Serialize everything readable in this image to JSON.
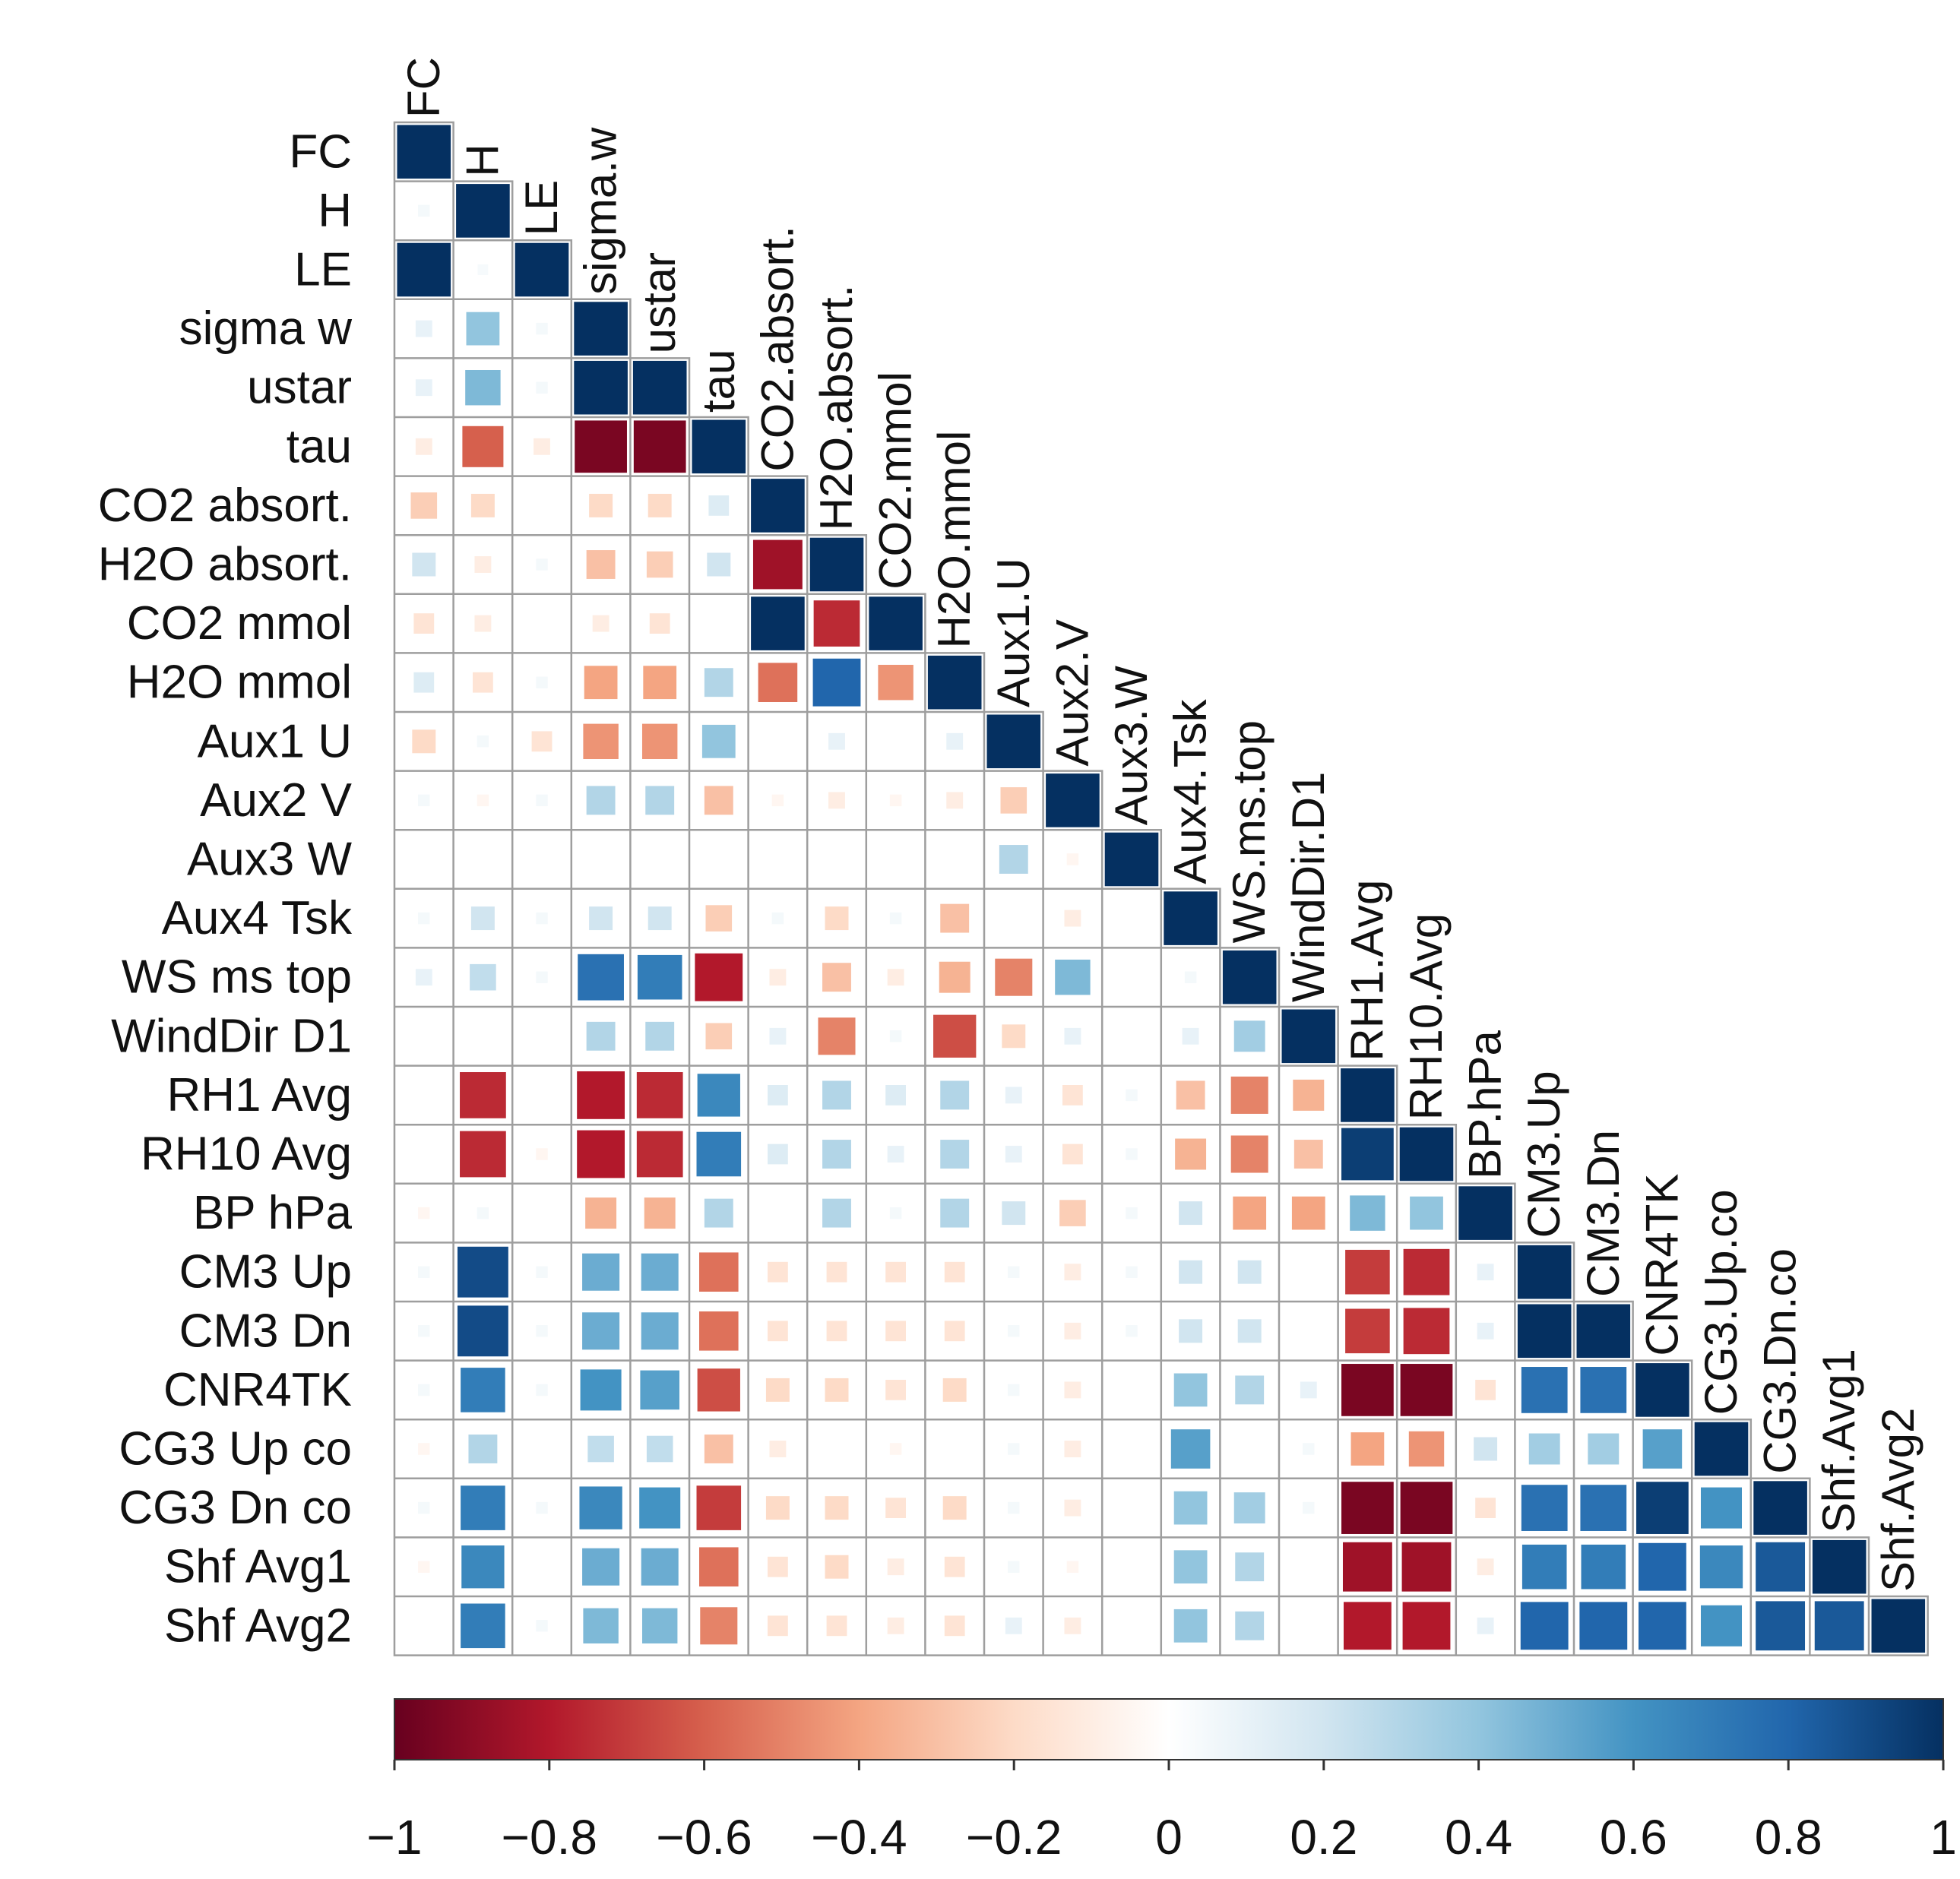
{
  "chart_data": {
    "type": "heatmap",
    "style": "corrplot-lower-square",
    "row_labels": [
      "FC",
      "H",
      "LE",
      "sigma w",
      "ustar",
      "tau",
      "CO2 absort.",
      "H2O absort.",
      "CO2 mmol",
      "H2O mmol",
      "Aux1 U",
      "Aux2 V",
      "Aux3 W",
      "Aux4 Tsk",
      "WS ms top",
      "WindDir D1",
      "RH1 Avg",
      "RH10 Avg",
      "BP hPa",
      "CM3 Up",
      "CM3 Dn",
      "CNR4TK",
      "CG3 Up co",
      "CG3 Dn co",
      "Shf Avg1",
      "Shf Avg2"
    ],
    "col_labels": [
      "FC",
      "H",
      "LE",
      "sigma.w",
      "ustar",
      "tau",
      "CO2.absort.",
      "H2O.absort.",
      "CO2.mmol",
      "H2O.mmol",
      "Aux1.U",
      "Aux2.V",
      "Aux3.W",
      "Aux4.Tsk",
      "WS.ms.top",
      "WindDir.D1",
      "RH1.Avg",
      "RH10.Avg",
      "BP.hPa",
      "CM3.Up",
      "CM3.Dn",
      "CNR4TK",
      "CG3.Up.co",
      "CG3.Dn.co",
      "Shf.Avg1",
      "Shf.Avg2"
    ],
    "values": [
      [
        1
      ],
      [
        0.05,
        1
      ],
      [
        1,
        0.04,
        1
      ],
      [
        0.1,
        0.4,
        0.05,
        1
      ],
      [
        0.1,
        0.45,
        0.05,
        1,
        1
      ],
      [
        -0.1,
        -0.6,
        -0.1,
        -0.95,
        -0.95,
        1
      ],
      [
        -0.25,
        -0.2,
        0,
        -0.2,
        -0.2,
        0.15,
        1
      ],
      [
        0.2,
        -0.1,
        0.05,
        -0.3,
        -0.25,
        0.2,
        -0.85,
        1
      ],
      [
        -0.15,
        -0.1,
        0,
        -0.1,
        -0.15,
        0,
        1,
        -0.75,
        1
      ],
      [
        0.15,
        -0.15,
        0.05,
        -0.4,
        -0.4,
        0.3,
        -0.55,
        0.8,
        -0.45,
        1
      ],
      [
        -0.2,
        0.05,
        -0.15,
        -0.45,
        -0.45,
        0.4,
        0,
        0.1,
        0,
        0.1,
        1
      ],
      [
        0.05,
        -0.05,
        0.05,
        0.3,
        0.3,
        -0.3,
        -0.05,
        -0.1,
        -0.05,
        -0.1,
        -0.25,
        1
      ],
      [
        0,
        0,
        0,
        0,
        0,
        0,
        0,
        0,
        0,
        0,
        0.3,
        -0.05,
        1
      ],
      [
        0.05,
        0.2,
        0.05,
        0.2,
        0.2,
        -0.25,
        0.05,
        -0.2,
        0.05,
        -0.3,
        0,
        -0.1,
        0,
        1
      ],
      [
        0.1,
        0.25,
        0.05,
        0.75,
        0.7,
        -0.8,
        -0.1,
        -0.3,
        -0.1,
        -0.35,
        -0.5,
        0.45,
        0,
        0.05,
        1
      ],
      [
        0,
        0,
        0,
        0.3,
        0.3,
        -0.25,
        0.1,
        -0.5,
        0.05,
        -0.65,
        -0.2,
        0.1,
        0,
        0.1,
        0.35,
        1
      ],
      [
        0,
        -0.75,
        0,
        -0.8,
        -0.75,
        0.65,
        0.15,
        0.3,
        0.15,
        0.3,
        0.1,
        -0.15,
        0.05,
        -0.3,
        -0.5,
        -0.35,
        1
      ],
      [
        0,
        -0.75,
        -0.05,
        -0.8,
        -0.75,
        0.7,
        0.15,
        0.3,
        0.1,
        0.3,
        0.1,
        -0.15,
        0.05,
        -0.35,
        -0.5,
        -0.3,
        0.95,
        1
      ],
      [
        -0.05,
        0.05,
        0,
        -0.35,
        -0.35,
        0.3,
        0,
        0.3,
        0.05,
        0.3,
        0.2,
        -0.25,
        0.05,
        0.2,
        -0.4,
        -0.4,
        0.45,
        0.4,
        1
      ],
      [
        0.05,
        0.9,
        0.05,
        0.5,
        0.5,
        -0.55,
        -0.15,
        -0.15,
        -0.15,
        -0.15,
        0.05,
        -0.1,
        0.05,
        0.2,
        0.2,
        0,
        -0.7,
        -0.75,
        0.1,
        1
      ],
      [
        0.05,
        0.9,
        0.05,
        0.5,
        0.5,
        -0.55,
        -0.15,
        -0.15,
        -0.15,
        -0.15,
        0.05,
        -0.1,
        0.05,
        0.2,
        0.2,
        0,
        -0.7,
        -0.75,
        0.1,
        1,
        1
      ],
      [
        0.05,
        0.7,
        0.05,
        0.6,
        0.55,
        -0.65,
        -0.2,
        -0.2,
        -0.15,
        -0.2,
        0.05,
        -0.1,
        0,
        0.4,
        0.3,
        0.1,
        -0.95,
        -0.95,
        -0.15,
        0.75,
        0.75,
        1
      ],
      [
        -0.05,
        0.3,
        0,
        0.25,
        0.25,
        -0.3,
        -0.1,
        0,
        -0.05,
        0,
        0.05,
        -0.1,
        0,
        0.55,
        0,
        0.05,
        -0.4,
        -0.45,
        0.2,
        0.35,
        0.35,
        0.55,
        1
      ],
      [
        0.05,
        0.7,
        0.05,
        0.65,
        0.6,
        -0.7,
        -0.2,
        -0.2,
        -0.15,
        -0.2,
        0.05,
        -0.1,
        0,
        0.4,
        0.35,
        0.05,
        -0.95,
        -0.95,
        -0.15,
        0.75,
        0.75,
        0.95,
        0.6,
        1
      ],
      [
        -0.05,
        0.65,
        0,
        0.5,
        0.5,
        -0.55,
        -0.15,
        -0.2,
        -0.1,
        -0.15,
        0.05,
        -0.05,
        0,
        0.4,
        0.3,
        0,
        -0.85,
        -0.85,
        -0.1,
        0.7,
        0.7,
        0.8,
        0.65,
        0.85,
        1
      ],
      [
        0,
        0.7,
        0.05,
        0.45,
        0.45,
        -0.5,
        -0.15,
        -0.15,
        -0.1,
        -0.15,
        0.1,
        -0.1,
        0,
        0.4,
        0.3,
        0,
        -0.8,
        -0.8,
        0.1,
        0.8,
        0.8,
        0.8,
        0.6,
        0.85,
        0.85,
        1
      ]
    ],
    "color_scale": {
      "range": [
        -1,
        1
      ],
      "stops": [
        "#67001f",
        "#b2182b",
        "#d6604d",
        "#f4a582",
        "#fddbc7",
        "#ffffff",
        "#d1e5f0",
        "#92c5de",
        "#4393c3",
        "#2166ac",
        "#053061"
      ]
    },
    "colorbar_ticks": [
      "−1",
      "−0.8",
      "−0.6",
      "−0.4",
      "−0.2",
      "0",
      "0.2",
      "0.4",
      "0.6",
      "0.8",
      "1"
    ],
    "colorbar_tick_values": [
      -1,
      -0.8,
      -0.6,
      -0.4,
      -0.2,
      0,
      0.2,
      0.4,
      0.6,
      0.8,
      1
    ],
    "title": "",
    "grid": true,
    "legend_position": "bottom"
  }
}
